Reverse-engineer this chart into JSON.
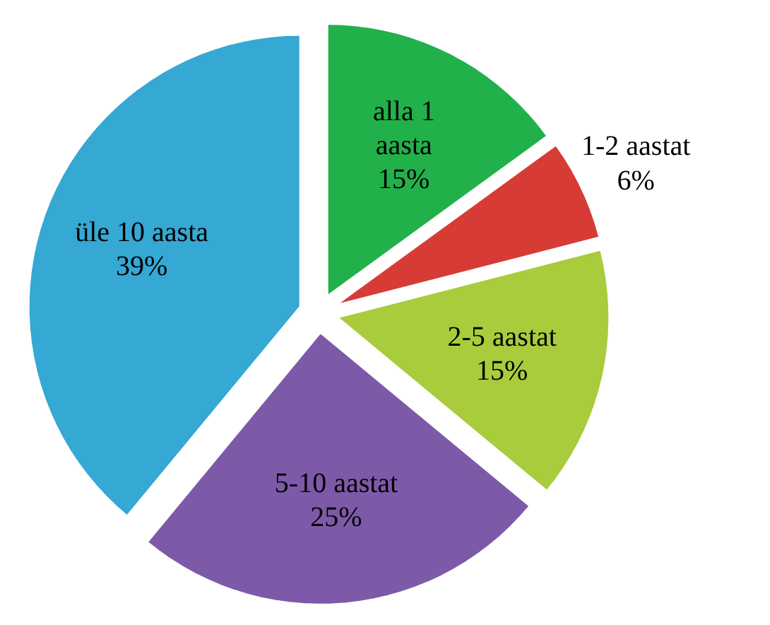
{
  "chart_data": {
    "type": "pie",
    "categories": [
      "alla 1 aasta",
      "1-2 aastat",
      "2-5 aastat",
      "5-10 aastat",
      "üle 10 aasta"
    ],
    "values": [
      15,
      6,
      15,
      25,
      39
    ],
    "value_labels": [
      "15%",
      "6%",
      "15%",
      "25%",
      "39%"
    ],
    "colors": [
      "#22b04a",
      "#d63c35",
      "#a8cc3c",
      "#7d5aa8",
      "#35a8d4"
    ]
  }
}
